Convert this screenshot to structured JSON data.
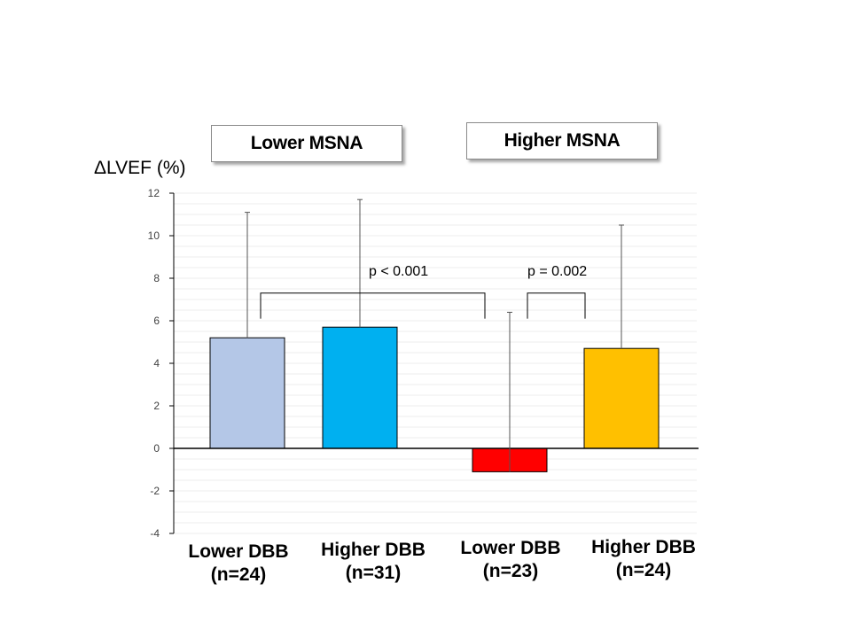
{
  "groups": [
    {
      "label": "Lower MSNA"
    },
    {
      "label": "Higher MSNA"
    }
  ],
  "chart_data": {
    "type": "bar",
    "title": "",
    "ylabel": "ΔLVEF (%)",
    "xlabel": "",
    "ylim": [
      -4,
      12
    ],
    "yticks": [
      -4,
      -2,
      0,
      2,
      4,
      6,
      8,
      10,
      12
    ],
    "grid": true,
    "categories": [
      {
        "line1": "Lower DBB",
        "line2": "(n=24)"
      },
      {
        "line1": "Higher DBB",
        "line2": "(n=31)"
      },
      {
        "line1": "Lower DBB",
        "line2": "(n=23)"
      },
      {
        "line1": "Higher DBB",
        "line2": "(n=24)"
      }
    ],
    "values": [
      5.2,
      5.7,
      -1.1,
      4.7
    ],
    "error_upper": [
      11.1,
      11.7,
      6.4,
      10.5
    ],
    "colors": [
      "#b4c7e7",
      "#00b0f0",
      "#ff0000",
      "#ffc000"
    ],
    "annotations": [
      {
        "text": "p < 0.001",
        "from": 0,
        "to": 2,
        "y": 7.3
      },
      {
        "text": "p = 0.002",
        "from": 2,
        "to": 3,
        "y": 7.3
      }
    ]
  }
}
